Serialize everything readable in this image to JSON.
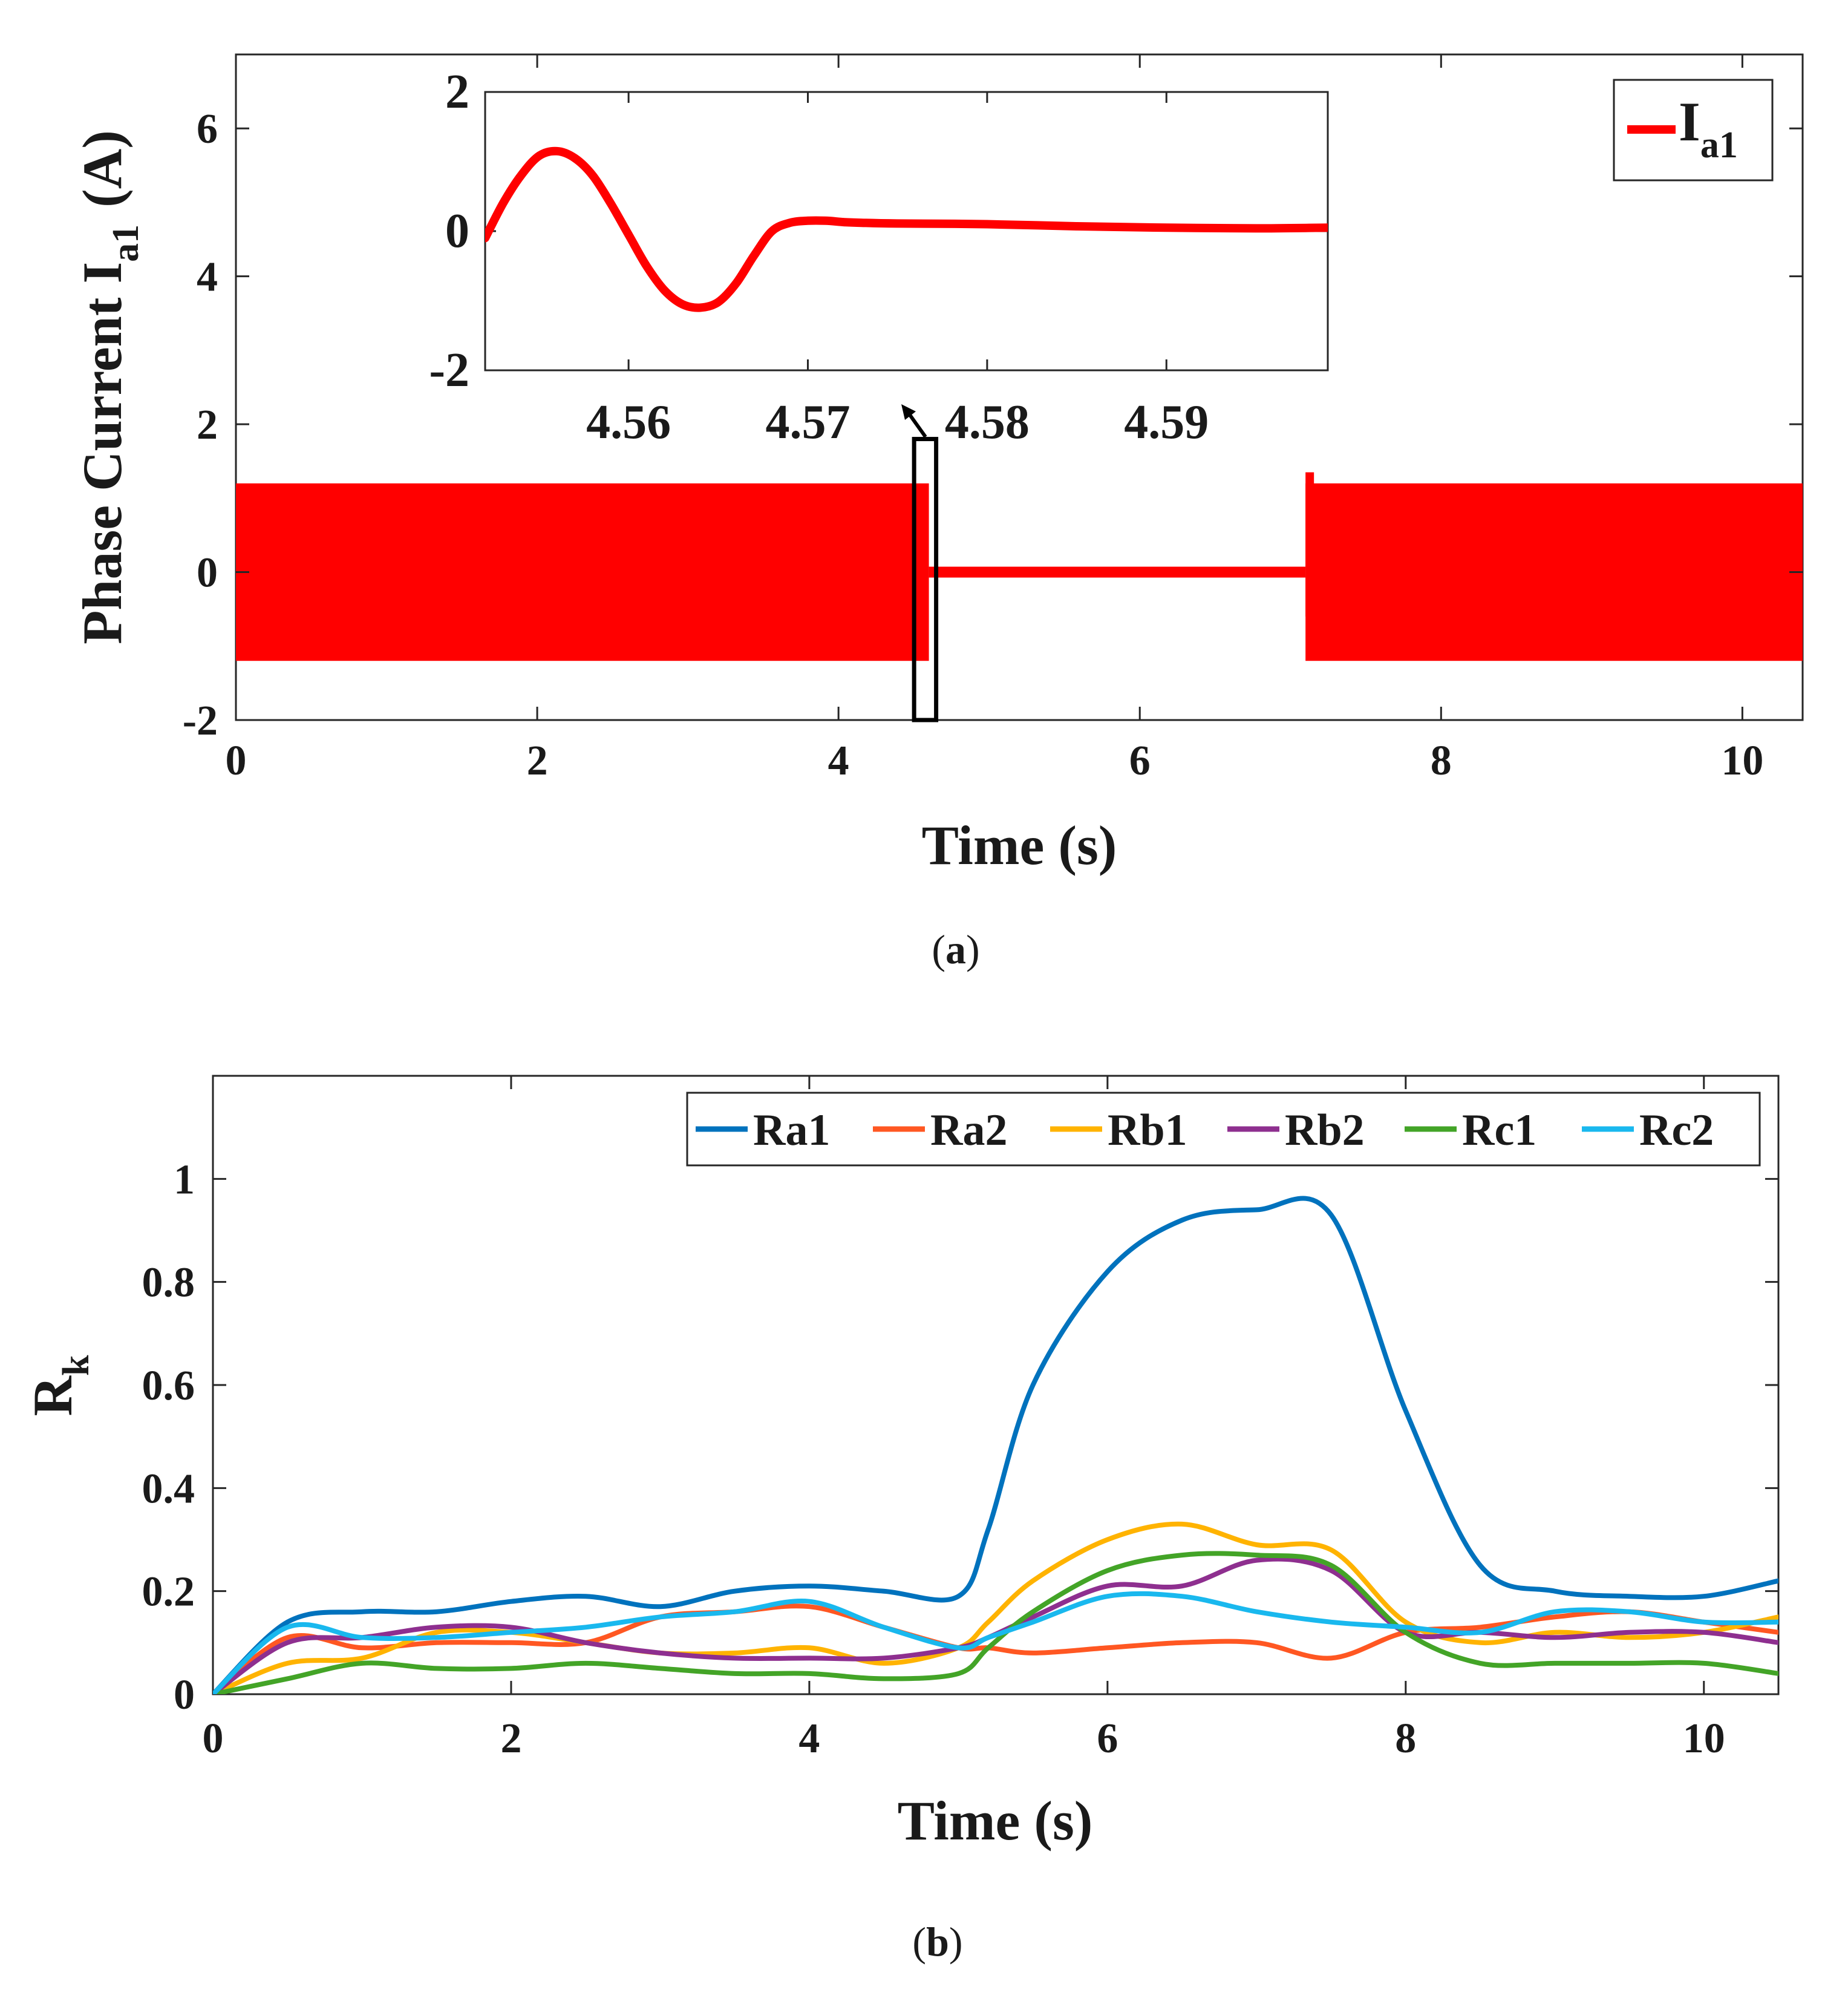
{
  "chart_data": [
    {
      "id": "a",
      "type": "line",
      "caption": "a",
      "xlabel": "Time (s)",
      "ylabel_main": "Phase Current I",
      "ylabel_sub": "a1",
      "ylabel_unit": "(A)",
      "xlim": [
        0,
        10.4
      ],
      "ylim": [
        -2,
        7
      ],
      "x_ticks": [
        0,
        2,
        4,
        6,
        8,
        10
      ],
      "y_ticks": [
        -2,
        0,
        2,
        4,
        6
      ],
      "legend": {
        "name": "I",
        "sub": "a1",
        "placement": "top-right"
      },
      "color": "#ff0000",
      "segments": [
        {
          "state": "oscillating",
          "x_start": 0,
          "x_end": 4.6,
          "amplitude": 1.2
        },
        {
          "state": "near-zero",
          "x_start": 4.6,
          "x_end": 7.1,
          "value": 0
        },
        {
          "state": "oscillating",
          "x_start": 7.1,
          "x_end": 10.4,
          "amplitude": 1.2,
          "spike": 1.35
        }
      ],
      "zoom_box": {
        "x_range": [
          4.55,
          4.6
        ],
        "y_range": [
          -2,
          1.8
        ]
      },
      "inset": {
        "xlim": [
          4.552,
          4.599
        ],
        "ylim": [
          -2,
          2
        ],
        "x_ticks": [
          4.56,
          4.57,
          4.58,
          4.59
        ],
        "x_tick_labels": [
          "4.56",
          "4.57",
          "4.58",
          "4.59"
        ],
        "y_ticks": [
          -2,
          0,
          2
        ],
        "x": [
          4.552,
          4.553,
          4.554,
          4.555,
          4.556,
          4.557,
          4.558,
          4.559,
          4.56,
          4.561,
          4.562,
          4.563,
          4.564,
          4.565,
          4.566,
          4.567,
          4.568,
          4.569,
          4.57,
          4.571,
          4.572,
          4.573,
          4.575,
          4.58,
          4.585,
          4.59,
          4.595,
          4.599
        ],
        "y": [
          -0.1,
          0.4,
          0.8,
          1.08,
          1.15,
          1.05,
          0.8,
          0.4,
          -0.05,
          -0.5,
          -0.85,
          -1.05,
          -1.1,
          -1.02,
          -0.75,
          -0.35,
          0.0,
          0.12,
          0.15,
          0.15,
          0.13,
          0.12,
          0.11,
          0.1,
          0.07,
          0.05,
          0.04,
          0.05
        ]
      }
    },
    {
      "id": "b",
      "type": "line",
      "caption": "b",
      "xlabel": "Time (s)",
      "ylabel_main": "R",
      "ylabel_sub": "k",
      "xlim": [
        0,
        10.5
      ],
      "ylim": [
        0,
        1.2
      ],
      "x_ticks": [
        0,
        2,
        4,
        6,
        8,
        10
      ],
      "y_ticks": [
        0,
        0.2,
        0.4,
        0.6,
        0.8,
        1
      ],
      "y_tick_labels": [
        "0",
        "0.2",
        "0.4",
        "0.6",
        "0.8",
        "1"
      ],
      "legend_placement": "top-right",
      "x": [
        0,
        0.5,
        1,
        1.5,
        2,
        2.5,
        3,
        3.5,
        4,
        4.5,
        5,
        5.2,
        5.5,
        6,
        6.5,
        7,
        7.5,
        8,
        8.5,
        9,
        9.5,
        10,
        10.5
      ],
      "series": [
        {
          "name": "Ra1",
          "color": "#0072bd",
          "values": [
            0,
            0.14,
            0.16,
            0.16,
            0.18,
            0.19,
            0.17,
            0.2,
            0.21,
            0.2,
            0.19,
            0.32,
            0.6,
            0.82,
            0.92,
            0.94,
            0.93,
            0.55,
            0.25,
            0.2,
            0.19,
            0.19,
            0.22
          ]
        },
        {
          "name": "Ra2",
          "color": "#ff5722",
          "values": [
            0,
            0.11,
            0.09,
            0.1,
            0.1,
            0.1,
            0.15,
            0.16,
            0.17,
            0.13,
            0.09,
            0.09,
            0.08,
            0.09,
            0.1,
            0.1,
            0.07,
            0.12,
            0.13,
            0.15,
            0.16,
            0.14,
            0.12
          ]
        },
        {
          "name": "Rb1",
          "color": "#ffb300",
          "values": [
            0,
            0.06,
            0.07,
            0.12,
            0.12,
            0.1,
            0.08,
            0.08,
            0.09,
            0.06,
            0.09,
            0.14,
            0.22,
            0.3,
            0.33,
            0.29,
            0.28,
            0.14,
            0.1,
            0.12,
            0.11,
            0.12,
            0.15
          ]
        },
        {
          "name": "Rb2",
          "color": "#8e2f8f",
          "values": [
            0,
            0.1,
            0.11,
            0.13,
            0.13,
            0.1,
            0.08,
            0.07,
            0.07,
            0.07,
            0.09,
            0.11,
            0.15,
            0.21,
            0.21,
            0.26,
            0.24,
            0.12,
            0.12,
            0.11,
            0.12,
            0.12,
            0.1
          ]
        },
        {
          "name": "Rc1",
          "color": "#43a427",
          "values": [
            0,
            0.03,
            0.06,
            0.05,
            0.05,
            0.06,
            0.05,
            0.04,
            0.04,
            0.03,
            0.04,
            0.09,
            0.16,
            0.24,
            0.27,
            0.27,
            0.25,
            0.12,
            0.06,
            0.06,
            0.06,
            0.06,
            0.04
          ]
        },
        {
          "name": "Rc2",
          "color": "#19b8ee",
          "values": [
            0,
            0.13,
            0.11,
            0.11,
            0.12,
            0.13,
            0.15,
            0.16,
            0.18,
            0.13,
            0.09,
            0.11,
            0.14,
            0.19,
            0.19,
            0.16,
            0.14,
            0.13,
            0.12,
            0.16,
            0.16,
            0.14,
            0.14
          ]
        }
      ]
    }
  ]
}
